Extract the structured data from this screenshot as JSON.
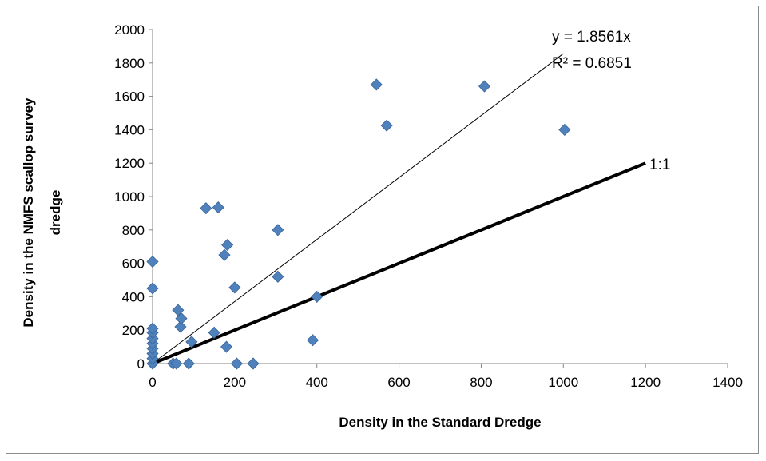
{
  "chart_data": {
    "type": "scatter",
    "title": "",
    "xlabel": "Density in the Standard Dredge",
    "ylabel_line1": "Density in the NMFS scallop survey",
    "ylabel_line2": "dredge",
    "xlim": [
      0,
      1400
    ],
    "ylim": [
      0,
      2000
    ],
    "x_ticks": [
      0,
      200,
      400,
      600,
      800,
      1000,
      1200,
      1400
    ],
    "y_ticks": [
      0,
      200,
      400,
      600,
      800,
      1000,
      1200,
      1400,
      1600,
      1800,
      2000
    ],
    "grid": false,
    "marker_color": "#4f81bd",
    "marker_stroke": "#3a6596",
    "points": [
      [
        0,
        0
      ],
      [
        0,
        30
      ],
      [
        0,
        60
      ],
      [
        0,
        90
      ],
      [
        0,
        120
      ],
      [
        0,
        150
      ],
      [
        0,
        185
      ],
      [
        0,
        210
      ],
      [
        0,
        450
      ],
      [
        0,
        610
      ],
      [
        50,
        0
      ],
      [
        58,
        0
      ],
      [
        88,
        0
      ],
      [
        62,
        320
      ],
      [
        68,
        220
      ],
      [
        70,
        270
      ],
      [
        95,
        130
      ],
      [
        130,
        930
      ],
      [
        150,
        185
      ],
      [
        160,
        935
      ],
      [
        175,
        650
      ],
      [
        180,
        100
      ],
      [
        182,
        710
      ],
      [
        200,
        455
      ],
      [
        205,
        0
      ],
      [
        245,
        0
      ],
      [
        305,
        800
      ],
      [
        305,
        520
      ],
      [
        390,
        140
      ],
      [
        400,
        400
      ],
      [
        545,
        1670
      ],
      [
        570,
        1425
      ],
      [
        808,
        1660
      ],
      [
        1003,
        1400
      ]
    ],
    "trendline": {
      "slope": 1.8561,
      "x_range": [
        0,
        1000
      ],
      "equation": "y = 1.8561x",
      "r_squared": "R² = 0.6851",
      "color": "#000000"
    },
    "one_to_one": {
      "x_range": [
        0,
        1200
      ],
      "label": "1:1",
      "color": "#000000"
    }
  }
}
